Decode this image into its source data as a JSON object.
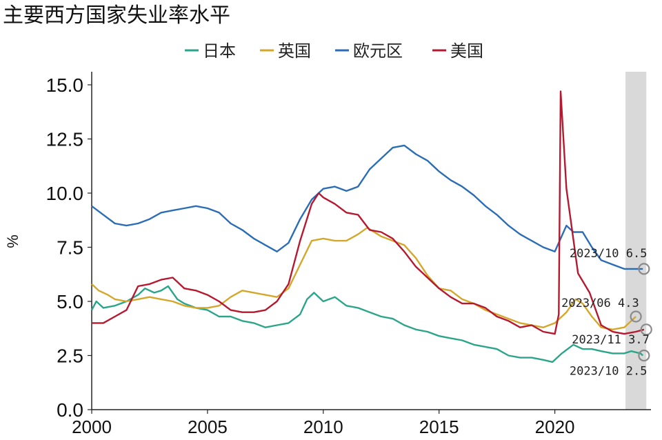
{
  "chart_data": {
    "type": "line",
    "title": "主要西方国家失业率水平",
    "xlabel": "",
    "ylabel": "%",
    "xlim": [
      2000,
      2024.3
    ],
    "ylim": [
      0,
      15.5
    ],
    "x_ticks": [
      "2000",
      "2005",
      "2010",
      "2015",
      "2020"
    ],
    "y_ticks": [
      "0.0",
      "2.5",
      "5.0",
      "7.5",
      "10.0",
      "12.5",
      "15.0"
    ],
    "legend_position": "top-center",
    "shaded_region": [
      2023.05,
      2023.95
    ],
    "colors": {
      "日本": "#2aa58a",
      "英国": "#d4a62a",
      "欧元区": "#2b6db5",
      "美国": "#b5182f",
      "shade": "#d9d9d9"
    },
    "series": [
      {
        "name": "日本",
        "points": [
          [
            2000.0,
            4.6
          ],
          [
            2000.2,
            5.0
          ],
          [
            2000.5,
            4.7
          ],
          [
            2001.0,
            4.8
          ],
          [
            2001.5,
            5.0
          ],
          [
            2002.0,
            5.3
          ],
          [
            2002.3,
            5.6
          ],
          [
            2002.7,
            5.4
          ],
          [
            2003.0,
            5.5
          ],
          [
            2003.3,
            5.7
          ],
          [
            2003.7,
            5.1
          ],
          [
            2004.0,
            4.9
          ],
          [
            2004.5,
            4.7
          ],
          [
            2005.0,
            4.6
          ],
          [
            2005.5,
            4.3
          ],
          [
            2006.0,
            4.3
          ],
          [
            2006.5,
            4.1
          ],
          [
            2007.0,
            4.0
          ],
          [
            2007.5,
            3.8
          ],
          [
            2008.0,
            3.9
          ],
          [
            2008.5,
            4.0
          ],
          [
            2009.0,
            4.4
          ],
          [
            2009.3,
            5.1
          ],
          [
            2009.6,
            5.4
          ],
          [
            2010.0,
            5.0
          ],
          [
            2010.5,
            5.2
          ],
          [
            2011.0,
            4.8
          ],
          [
            2011.5,
            4.7
          ],
          [
            2012.0,
            4.5
          ],
          [
            2012.5,
            4.3
          ],
          [
            2013.0,
            4.2
          ],
          [
            2013.5,
            3.9
          ],
          [
            2014.0,
            3.7
          ],
          [
            2014.5,
            3.6
          ],
          [
            2015.0,
            3.4
          ],
          [
            2015.5,
            3.3
          ],
          [
            2016.0,
            3.2
          ],
          [
            2016.5,
            3.0
          ],
          [
            2017.0,
            2.9
          ],
          [
            2017.5,
            2.8
          ],
          [
            2018.0,
            2.5
          ],
          [
            2018.5,
            2.4
          ],
          [
            2019.0,
            2.4
          ],
          [
            2019.5,
            2.3
          ],
          [
            2019.9,
            2.2
          ],
          [
            2020.3,
            2.6
          ],
          [
            2020.8,
            3.0
          ],
          [
            2021.2,
            2.8
          ],
          [
            2021.6,
            2.8
          ],
          [
            2022.0,
            2.7
          ],
          [
            2022.5,
            2.6
          ],
          [
            2023.0,
            2.6
          ],
          [
            2023.3,
            2.7
          ],
          [
            2023.7,
            2.6
          ],
          [
            2023.8,
            2.5
          ]
        ]
      },
      {
        "name": "英国",
        "points": [
          [
            2000.0,
            5.8
          ],
          [
            2000.3,
            5.5
          ],
          [
            2000.7,
            5.3
          ],
          [
            2001.0,
            5.1
          ],
          [
            2001.5,
            5.0
          ],
          [
            2002.0,
            5.1
          ],
          [
            2002.5,
            5.2
          ],
          [
            2003.0,
            5.1
          ],
          [
            2003.5,
            5.0
          ],
          [
            2004.0,
            4.8
          ],
          [
            2004.5,
            4.7
          ],
          [
            2005.0,
            4.7
          ],
          [
            2005.5,
            4.8
          ],
          [
            2006.0,
            5.2
          ],
          [
            2006.5,
            5.5
          ],
          [
            2007.0,
            5.4
          ],
          [
            2007.5,
            5.3
          ],
          [
            2008.0,
            5.2
          ],
          [
            2008.5,
            5.6
          ],
          [
            2009.0,
            6.7
          ],
          [
            2009.5,
            7.8
          ],
          [
            2010.0,
            7.9
          ],
          [
            2010.5,
            7.8
          ],
          [
            2011.0,
            7.8
          ],
          [
            2011.5,
            8.1
          ],
          [
            2011.9,
            8.4
          ],
          [
            2012.5,
            8.0
          ],
          [
            2013.0,
            7.8
          ],
          [
            2013.5,
            7.6
          ],
          [
            2014.0,
            7.0
          ],
          [
            2014.5,
            6.2
          ],
          [
            2015.0,
            5.6
          ],
          [
            2015.5,
            5.5
          ],
          [
            2016.0,
            5.1
          ],
          [
            2016.5,
            4.9
          ],
          [
            2017.0,
            4.6
          ],
          [
            2017.5,
            4.4
          ],
          [
            2018.0,
            4.2
          ],
          [
            2018.5,
            4.0
          ],
          [
            2019.0,
            3.9
          ],
          [
            2019.5,
            3.8
          ],
          [
            2020.0,
            4.0
          ],
          [
            2020.5,
            4.5
          ],
          [
            2020.9,
            5.1
          ],
          [
            2021.2,
            4.9
          ],
          [
            2021.6,
            4.3
          ],
          [
            2022.0,
            3.8
          ],
          [
            2022.5,
            3.7
          ],
          [
            2023.0,
            3.8
          ],
          [
            2023.4,
            4.2
          ],
          [
            2023.5,
            4.3
          ]
        ]
      },
      {
        "name": "欧元区",
        "points": [
          [
            2000.0,
            9.4
          ],
          [
            2000.5,
            9.0
          ],
          [
            2001.0,
            8.6
          ],
          [
            2001.5,
            8.5
          ],
          [
            2002.0,
            8.6
          ],
          [
            2002.5,
            8.8
          ],
          [
            2003.0,
            9.1
          ],
          [
            2003.5,
            9.2
          ],
          [
            2004.0,
            9.3
          ],
          [
            2004.5,
            9.4
          ],
          [
            2005.0,
            9.3
          ],
          [
            2005.5,
            9.1
          ],
          [
            2006.0,
            8.6
          ],
          [
            2006.5,
            8.3
          ],
          [
            2007.0,
            7.9
          ],
          [
            2007.5,
            7.6
          ],
          [
            2008.0,
            7.3
          ],
          [
            2008.5,
            7.7
          ],
          [
            2009.0,
            8.8
          ],
          [
            2009.5,
            9.7
          ],
          [
            2010.0,
            10.2
          ],
          [
            2010.5,
            10.3
          ],
          [
            2011.0,
            10.1
          ],
          [
            2011.5,
            10.3
          ],
          [
            2012.0,
            11.1
          ],
          [
            2012.5,
            11.6
          ],
          [
            2013.0,
            12.1
          ],
          [
            2013.5,
            12.2
          ],
          [
            2014.0,
            11.8
          ],
          [
            2014.5,
            11.5
          ],
          [
            2015.0,
            11.0
          ],
          [
            2015.5,
            10.6
          ],
          [
            2016.0,
            10.3
          ],
          [
            2016.5,
            9.9
          ],
          [
            2017.0,
            9.4
          ],
          [
            2017.5,
            9.0
          ],
          [
            2018.0,
            8.5
          ],
          [
            2018.5,
            8.1
          ],
          [
            2019.0,
            7.8
          ],
          [
            2019.5,
            7.5
          ],
          [
            2020.0,
            7.3
          ],
          [
            2020.5,
            8.5
          ],
          [
            2020.8,
            8.2
          ],
          [
            2021.2,
            8.2
          ],
          [
            2021.6,
            7.5
          ],
          [
            2022.0,
            6.9
          ],
          [
            2022.5,
            6.7
          ],
          [
            2023.0,
            6.5
          ],
          [
            2023.5,
            6.5
          ],
          [
            2023.8,
            6.5
          ]
        ]
      },
      {
        "name": "美国",
        "points": [
          [
            2000.0,
            4.0
          ],
          [
            2000.5,
            4.0
          ],
          [
            2001.0,
            4.3
          ],
          [
            2001.5,
            4.6
          ],
          [
            2002.0,
            5.7
          ],
          [
            2002.5,
            5.8
          ],
          [
            2003.0,
            6.0
          ],
          [
            2003.5,
            6.1
          ],
          [
            2004.0,
            5.6
          ],
          [
            2004.5,
            5.5
          ],
          [
            2005.0,
            5.3
          ],
          [
            2005.5,
            5.0
          ],
          [
            2006.0,
            4.6
          ],
          [
            2006.5,
            4.5
          ],
          [
            2007.0,
            4.5
          ],
          [
            2007.5,
            4.6
          ],
          [
            2008.0,
            5.0
          ],
          [
            2008.5,
            5.8
          ],
          [
            2009.0,
            7.8
          ],
          [
            2009.5,
            9.5
          ],
          [
            2009.8,
            10.0
          ],
          [
            2010.0,
            9.8
          ],
          [
            2010.5,
            9.5
          ],
          [
            2011.0,
            9.1
          ],
          [
            2011.5,
            9.0
          ],
          [
            2012.0,
            8.3
          ],
          [
            2012.5,
            8.2
          ],
          [
            2013.0,
            7.9
          ],
          [
            2013.5,
            7.3
          ],
          [
            2014.0,
            6.6
          ],
          [
            2014.5,
            6.1
          ],
          [
            2015.0,
            5.6
          ],
          [
            2015.5,
            5.2
          ],
          [
            2016.0,
            4.9
          ],
          [
            2016.5,
            4.9
          ],
          [
            2017.0,
            4.7
          ],
          [
            2017.5,
            4.3
          ],
          [
            2018.0,
            4.1
          ],
          [
            2018.5,
            3.8
          ],
          [
            2019.0,
            3.9
          ],
          [
            2019.5,
            3.6
          ],
          [
            2020.0,
            3.5
          ],
          [
            2020.17,
            4.4
          ],
          [
            2020.25,
            14.7
          ],
          [
            2020.5,
            10.2
          ],
          [
            2021.0,
            6.3
          ],
          [
            2021.5,
            5.4
          ],
          [
            2022.0,
            3.9
          ],
          [
            2022.5,
            3.6
          ],
          [
            2023.0,
            3.5
          ],
          [
            2023.5,
            3.6
          ],
          [
            2023.85,
            3.7
          ]
        ]
      }
    ],
    "annotations": [
      {
        "text": "2023/10  6.5",
        "x": 2023.85,
        "y": 6.5
      },
      {
        "text": "2023/06  4.3",
        "x": 2023.5,
        "y": 4.3
      },
      {
        "text": "2023/11  3.7",
        "x": 2023.95,
        "y": 3.7
      },
      {
        "text": "2023/10  2.5",
        "x": 2023.85,
        "y": 2.5
      }
    ]
  }
}
